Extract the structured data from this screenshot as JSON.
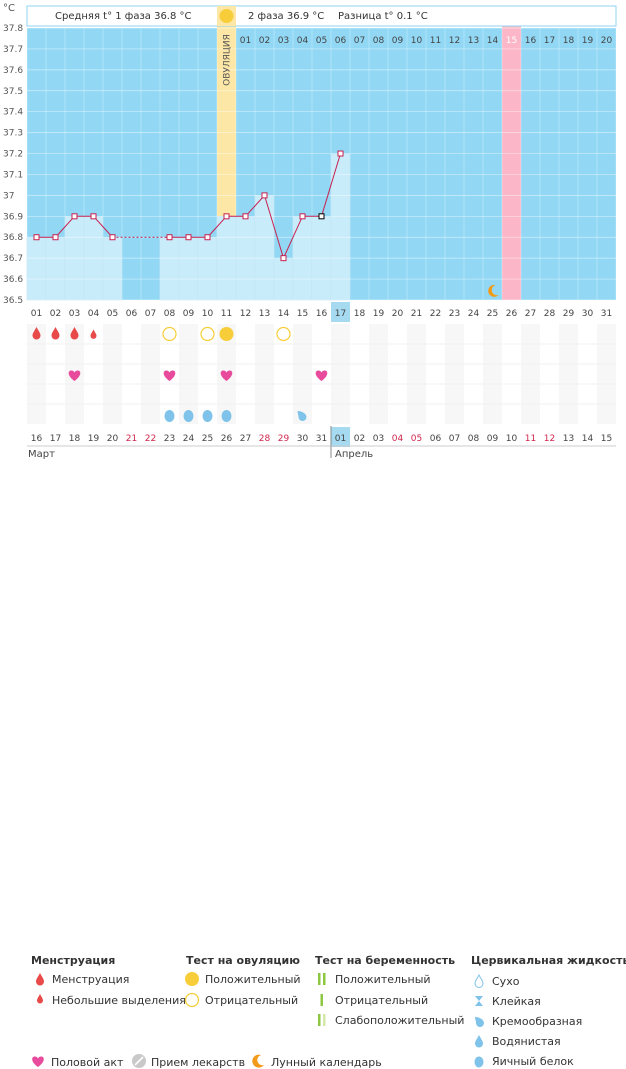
{
  "chart_data": {
    "type": "line",
    "unit_label": "°C",
    "y_ticks": [
      "37.8",
      "37.7",
      "37.6",
      "37.5",
      "37.4",
      "37.3",
      "37.2",
      "37.1",
      "37",
      "36.9",
      "36.8",
      "36.7",
      "36.6",
      "36.5"
    ],
    "ylim": [
      36.5,
      37.8
    ],
    "header": {
      "phase1": "Средняя t° 1 фаза 36.8 °C",
      "phase2": "2 фаза 36.9 °C",
      "diff": "Разница t° 0.1 °C"
    },
    "ovulation_label": "ОВУЛЯЦИЯ",
    "cycle_days": [
      "01",
      "02",
      "03",
      "04",
      "05",
      "06",
      "07",
      "08",
      "09",
      "10",
      "11",
      "12",
      "13",
      "14",
      "15",
      "16",
      "17",
      "18",
      "19",
      "20",
      "21",
      "22",
      "23",
      "24",
      "25",
      "26",
      "27",
      "28",
      "29",
      "30",
      "31"
    ],
    "top_days": [
      "01",
      "02",
      "03",
      "04",
      "05",
      "06",
      "07",
      "08",
      "09",
      "10",
      "11",
      "12",
      "13",
      "14",
      "15",
      "16",
      "17",
      "18",
      "19",
      "20"
    ],
    "dates": [
      "16",
      "17",
      "18",
      "19",
      "20",
      "21",
      "22",
      "23",
      "24",
      "25",
      "26",
      "27",
      "28",
      "29",
      "30",
      "31",
      "01",
      "02",
      "03",
      "04",
      "05",
      "06",
      "07",
      "08",
      "09",
      "10",
      "11",
      "12",
      "13",
      "14",
      "15"
    ],
    "months": [
      "Март",
      "Апрель"
    ],
    "temperatures": [
      36.8,
      36.8,
      36.9,
      36.9,
      36.8,
      null,
      null,
      36.8,
      36.8,
      36.8,
      36.9,
      36.9,
      37.0,
      36.7,
      36.9,
      36.9,
      37.2,
      null,
      null,
      null,
      null,
      null,
      null,
      null,
      null,
      null,
      null,
      null,
      null,
      null,
      null
    ],
    "current_day": 17,
    "ovulation_day": 11,
    "pink_day": 26,
    "moon_day": 25,
    "menstruation": {
      "big": [
        1,
        2,
        3
      ],
      "small": [
        4
      ]
    },
    "ovulation_tests": {
      "positive": [
        11
      ],
      "negative": [
        8,
        10,
        14
      ]
    },
    "intercourse": [
      3,
      8,
      11,
      16
    ],
    "fluid": {
      "egg_white": [
        8,
        9,
        10,
        11
      ],
      "creamy": [
        15
      ]
    },
    "colors": {
      "background": "#92d8f5",
      "plot": "#c9ecfb",
      "ovulation": "#fde7a6",
      "pink": "#fbb7c7",
      "line": "#c8204f",
      "red": "#e84a4a",
      "yellow": "#f7cd3a",
      "heart": "#e94b9c",
      "drop": "#7fc3ea",
      "moon": "#f29b1b"
    }
  },
  "legend": {
    "menstruation": {
      "title": "Менструация",
      "items": [
        "Менструация",
        "Небольшие выделения"
      ]
    },
    "ovulation_test": {
      "title": "Тест на овуляцию",
      "items": [
        "Положительный",
        "Отрицательный"
      ]
    },
    "pregnancy_test": {
      "title": "Тест на беременность",
      "items": [
        "Положительный",
        "Отрицательный",
        "Слабоположительный"
      ]
    },
    "cervical": {
      "title": "Цервикальная жидкость",
      "items": [
        "Сухо",
        "Клейкая",
        "Кремообразная",
        "Водянистая",
        "Яичный белок"
      ]
    },
    "bottom": [
      "Половой акт",
      "Прием лекарств",
      "Лунный календарь"
    ]
  },
  "icons": {
    "menstruation": "blood-drop-icon",
    "small_discharge": "small-drop-icon",
    "ovulation_positive": "filled-circle-icon",
    "ovulation_negative": "hollow-circle-icon",
    "pregnancy": "stripe-icon",
    "dry": "dry-drop-icon",
    "sticky": "hourglass-icon",
    "creamy": "cream-drop-icon",
    "watery": "watery-drop-icon",
    "egg_white": "egg-white-drop-icon",
    "heart": "heart-icon",
    "pill": "pill-icon",
    "moon": "moon-icon"
  }
}
